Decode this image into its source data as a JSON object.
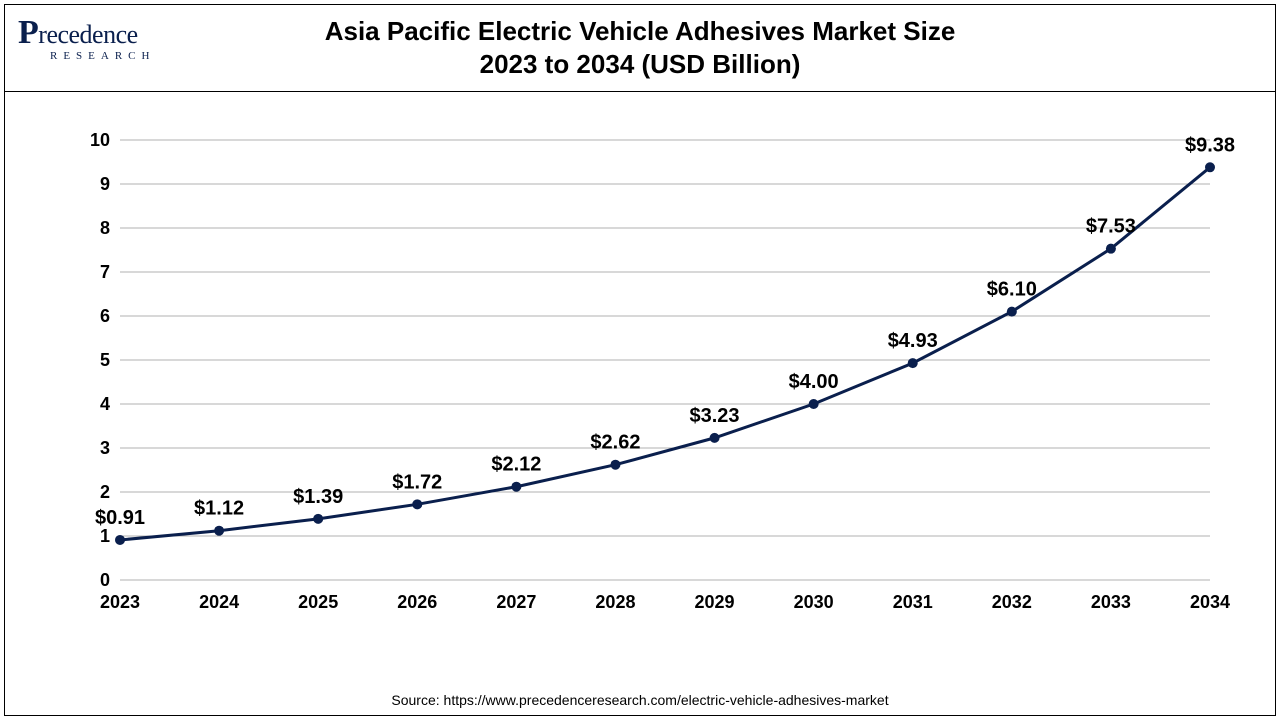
{
  "logo": {
    "brand_text": "recedence",
    "tagline": "RESEARCH"
  },
  "title": {
    "line1": "Asia Pacific Electric Vehicle Adhesives Market Size",
    "line2": "2023 to 2034 (USD Billion)"
  },
  "chart": {
    "type": "line",
    "categories": [
      "2023",
      "2024",
      "2025",
      "2026",
      "2027",
      "2028",
      "2029",
      "2030",
      "2031",
      "2032",
      "2033",
      "2034"
    ],
    "values": [
      0.91,
      1.12,
      1.39,
      1.72,
      2.12,
      2.62,
      3.23,
      4.0,
      4.93,
      6.1,
      7.53,
      9.38
    ],
    "labels": [
      "$0.91",
      "$1.12",
      "$1.39",
      "$1.72",
      "$2.12",
      "$2.62",
      "$3.23",
      "$4.00",
      "$4.93",
      "$6.10",
      "$7.53",
      "$9.38"
    ],
    "ylim": [
      0,
      10
    ],
    "ytick_step": 1,
    "line_color": "#0a1f4d",
    "marker_color": "#0a1f4d",
    "marker_size": 5,
    "grid_color": "#b0b0b0",
    "background_color": "#ffffff",
    "title_fontsize": 26,
    "tick_fontsize": 18,
    "label_fontsize": 20,
    "line_width": 3
  },
  "source": "Source: https://www.precedenceresearch.com/electric-vehicle-adhesives-market"
}
